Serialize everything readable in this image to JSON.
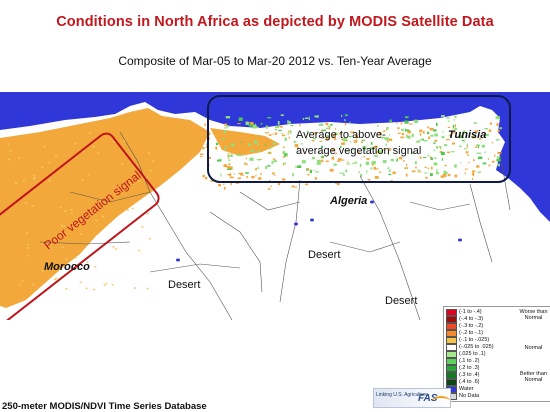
{
  "title": "Conditions in North Africa as depicted by MODIS Satellite Data",
  "subtitle": "Composite of Mar-05 to Mar-20 2012 vs. Ten-Year Average",
  "map": {
    "labels": {
      "poor_signal": "Poor vegetation signal",
      "above_avg_line1": "Average to above-",
      "above_avg_line2": "average vegetation signal",
      "tunisia": "Tunisia",
      "algeria": "Algeria",
      "morocco": "Morocco",
      "desert_1": "Desert",
      "desert_2": "Desert",
      "desert_3": "Desert"
    },
    "colors": {
      "sea": "#2f37d9",
      "land": "#ffffff",
      "below_avg": "#f2a83a",
      "above_avg": "#8fe07a",
      "poor_box": "#c0141c",
      "good_box": "#0d1a4a"
    }
  },
  "legend": {
    "items": [
      {
        "label": "(-1 to -.4)",
        "color": "#e3001a"
      },
      {
        "label": "(-.4 to -.3)",
        "color": "#a30a0a"
      },
      {
        "label": "(-.3 to -.2)",
        "color": "#ef4a24"
      },
      {
        "label": "(-.2 to -.1)",
        "color": "#f48a2a"
      },
      {
        "label": "(-.1 to -.025)",
        "color": "#f6c24a"
      },
      {
        "label": "(-.025 to .025)",
        "color": "#ffffff"
      },
      {
        "label": "(.025 to .1)",
        "color": "#a6e88c"
      },
      {
        "label": "(.1 to .2)",
        "color": "#5cd25a"
      },
      {
        "label": "(.2 to .3)",
        "color": "#2aa63a"
      },
      {
        "label": "(.3 to .4)",
        "color": "#127a22"
      },
      {
        "label": "(.4 to .6)",
        "color": "#0a4a12"
      },
      {
        "label": "Water",
        "color": "#2f37d9"
      },
      {
        "label": "No Data",
        "color": "#d8d8d8"
      }
    ],
    "group_worse": "Worse than Normal",
    "group_normal": "Normal",
    "group_better": "Better than Normal"
  },
  "logo": {
    "tagline": "Linking U.S. Agriculture",
    "name": "FAS"
  },
  "footer": "250-meter MODIS/NDVI Time Series Database"
}
